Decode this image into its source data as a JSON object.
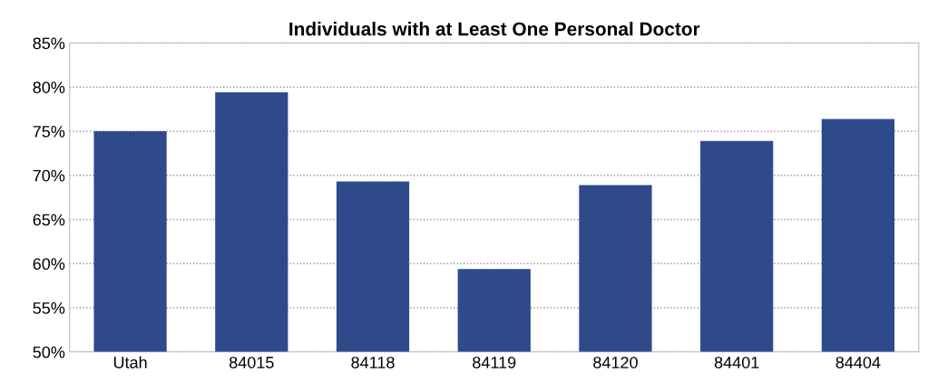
{
  "chart_data": {
    "type": "bar",
    "title": "Individuals with at Least One Personal Doctor",
    "categories": [
      "Utah",
      "84015",
      "84118",
      "84119",
      "84120",
      "84401",
      "84404"
    ],
    "values": [
      75,
      79.4,
      69.3,
      59.4,
      68.9,
      73.9,
      76.4
    ],
    "color": "#2e4a8b",
    "ylim": [
      50,
      85
    ],
    "yticks": [
      {
        "value": 50,
        "label": "50%"
      },
      {
        "value": 55,
        "label": "55%"
      },
      {
        "value": 60,
        "label": "60%"
      },
      {
        "value": 65,
        "label": "65%"
      },
      {
        "value": 70,
        "label": "70%"
      },
      {
        "value": 75,
        "label": "75%"
      },
      {
        "value": 80,
        "label": "80%"
      },
      {
        "value": 85,
        "label": "85%"
      }
    ],
    "grid": "y"
  }
}
